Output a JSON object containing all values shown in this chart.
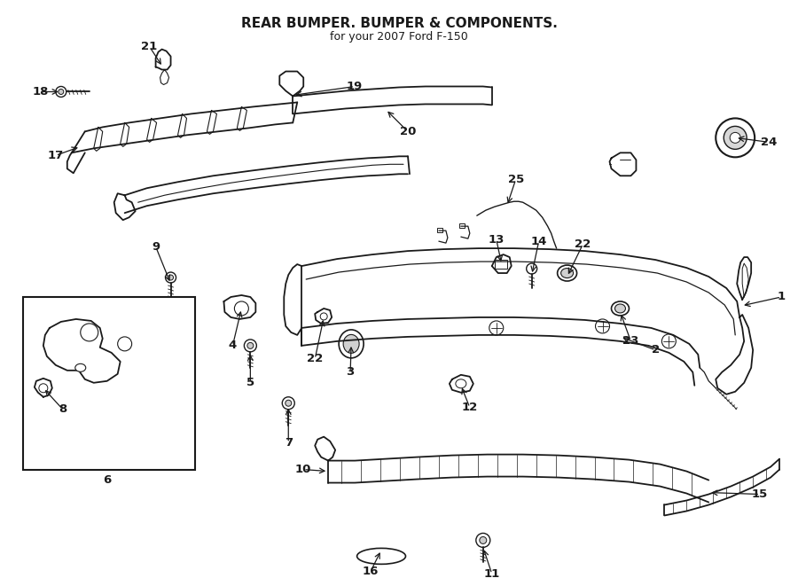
{
  "title": "REAR BUMPER. BUMPER & COMPONENTS.",
  "subtitle": "for your 2007 Ford F-150",
  "bg": "#ffffff",
  "lc": "#1a1a1a",
  "figsize": [
    9.0,
    6.61
  ],
  "dpi": 100
}
